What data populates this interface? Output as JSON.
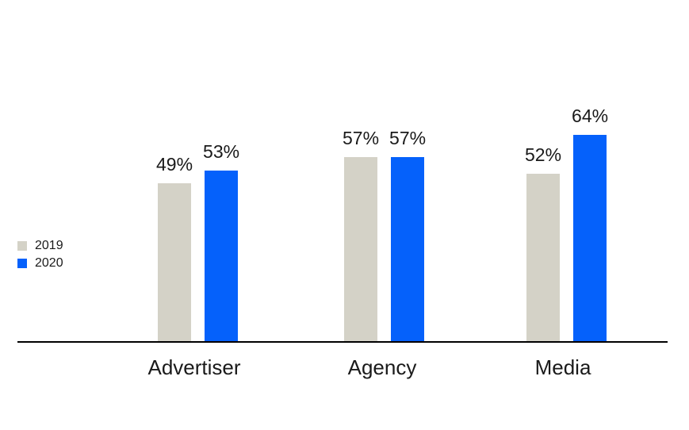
{
  "chart_data": {
    "type": "bar",
    "title": "",
    "categories": [
      "Advertiser",
      "Agency",
      "Media"
    ],
    "series": [
      {
        "name": "2019",
        "values": [
          49,
          57,
          52
        ],
        "color": "#D4D2C7"
      },
      {
        "name": "2020",
        "values": [
          53,
          57,
          64
        ],
        "color": "#0561FB"
      }
    ],
    "value_suffix": "%",
    "data_labels": {
      "2019": [
        "49%",
        "57%",
        "52%"
      ],
      "2020": [
        "53%",
        "57%",
        "64%"
      ]
    },
    "xlabel": "",
    "ylabel": "",
    "ylim": [
      0,
      70
    ],
    "grid": false,
    "legend_position": "middle-left",
    "axis_line_color": "#000000",
    "text_color": "#1A1A1A",
    "background_color": "#FFFFFF"
  }
}
